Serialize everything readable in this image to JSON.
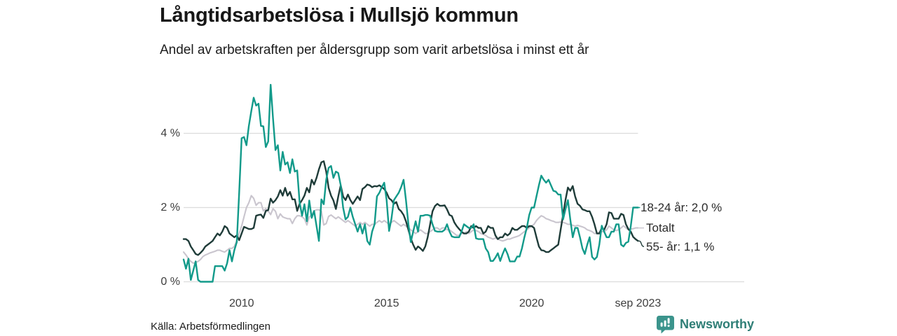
{
  "header": {
    "title": "Långtidsarbetslösa i Mullsjö kommun",
    "subtitle": "Andel av arbetskraften per åldersgrupp som varit arbetslösa i minst ett år"
  },
  "footer": {
    "source": "Källa: Arbetsförmedlingen",
    "brand": "Newsworthy"
  },
  "colors": {
    "accent_teal": "#129a8a",
    "dark_series": "#1f3c39",
    "gray_series": "#c9c5ce",
    "grid": "#dcdcdc",
    "text": "#1c1c1c",
    "brand_teal": "#2e7e76",
    "logo_teal": "#3b948c"
  },
  "chart_data": {
    "type": "line",
    "title": "Långtidsarbetslösa i Mullsjö kommun",
    "subtitle": "Andel av arbetskraften per åldersgrupp som varit arbetslösa i minst ett år",
    "unit": "%",
    "grid": "horizontal",
    "legend_position": "right-end-labels",
    "xlim": [
      2008.0,
      2023.6667
    ],
    "ylim": [
      0,
      5.5
    ],
    "x_step_years": 0.0833333,
    "x_ticks": [
      {
        "label": "2010",
        "year": 2010
      },
      {
        "label": "2015",
        "year": 2015
      },
      {
        "label": "2020",
        "year": 2020
      },
      {
        "label": "sep 2023",
        "year": 2023.6667
      }
    ],
    "y_ticks": [
      {
        "label": "0 %",
        "value": 0
      },
      {
        "label": "2 %",
        "value": 2
      },
      {
        "label": "4 %",
        "value": 4
      }
    ],
    "series": [
      {
        "name": "18-24 år",
        "end_label": "18-24 år: 2,0 %",
        "last_value": 2.0,
        "color": "#129a8a",
        "values": [
          0.6,
          0.35,
          0.62,
          0.05,
          0.3,
          0.55,
          0.05,
          0,
          0,
          0,
          0,
          0,
          0,
          0.42,
          0.42,
          0.42,
          0.42,
          0.3,
          0.5,
          0.85,
          0.55,
          0.85,
          1.07,
          2.4,
          3.87,
          3.9,
          3.68,
          4.2,
          4.6,
          4.96,
          4.75,
          4.8,
          4.2,
          4.19,
          3.63,
          3.78,
          5.31,
          4.4,
          3.55,
          3.68,
          3.0,
          3.5,
          3.16,
          3.22,
          2.93,
          3.3,
          2.97,
          3.0,
          2.15,
          1.78,
          2.09,
          1.63,
          2.19,
          1.72,
          1.91,
          1.5,
          1.1,
          2.22,
          2.09,
          2.75,
          3.07,
          3.12,
          2.8,
          2.97,
          2.93,
          2.6,
          2.0,
          1.68,
          1.75,
          2.0,
          1.75,
          1.55,
          1.35,
          1.55,
          1.3,
          1.55,
          1.1,
          1.0,
          1.35,
          1.55,
          2.3,
          2.4,
          2.55,
          2.67,
          2.2,
          1.37,
          1.7,
          2.2,
          2.3,
          2.4,
          2.55,
          2.75,
          2.2,
          1.55,
          1.07,
          1.35,
          1.63,
          1.35,
          1.78,
          1.78,
          1.8,
          1.8,
          1.78,
          1.55,
          1.37,
          1.35,
          1.35,
          1.35,
          1.4,
          1.55,
          1.35,
          1.22,
          1.2,
          1.2,
          1.2,
          1.35,
          1.55,
          1.5,
          1.45,
          1.45,
          1.55,
          1.17,
          1.15,
          1.15,
          1.15,
          0.9,
          0.8,
          0.56,
          0.56,
          0.65,
          0.77,
          0.56,
          0.75,
          0.9,
          0.75,
          0.55,
          0.55,
          0.55,
          0.68,
          0.68,
          0.9,
          1.2,
          1.45,
          1.8,
          2.0,
          2.0,
          2.3,
          2.6,
          2.86,
          2.75,
          2.67,
          2.75,
          2.6,
          2.45,
          2.43,
          2.35,
          2.35,
          1.68,
          1.95,
          2.2,
          1.68,
          1.2,
          1.45,
          1.45,
          1.2,
          0.9,
          0.75,
          1.0,
          1.2,
          0.67,
          0.6,
          0.67,
          1.0,
          1.51,
          1.35,
          1.2,
          1.2,
          1.35,
          1.35,
          1.55,
          1.55,
          1.0,
          0.95,
          1.05,
          1.08,
          1.5,
          2.0,
          2.0,
          2.0
        ]
      },
      {
        "name": "Totalt",
        "end_label": "Totalt",
        "last_value": 1.45,
        "color": "#c9c5ce",
        "values": [
          0.8,
          0.72,
          0.62,
          0.55,
          0.5,
          0.52,
          0.55,
          0.6,
          0.68,
          0.72,
          0.75,
          0.78,
          0.8,
          0.82,
          0.85,
          0.85,
          0.82,
          0.8,
          0.85,
          0.9,
          0.9,
          0.95,
          1.12,
          1.3,
          1.5,
          1.75,
          2.0,
          2.13,
          2.32,
          2.25,
          2.06,
          2.13,
          2.13,
          1.91,
          1.97,
          1.91,
          1.81,
          1.97,
          1.9,
          1.7,
          1.83,
          1.75,
          1.72,
          1.7,
          1.7,
          1.57,
          1.7,
          1.78,
          1.78,
          1.75,
          1.7,
          1.53,
          1.75,
          1.8,
          1.91,
          1.94,
          1.94,
          1.9,
          1.53,
          1.57,
          1.76,
          1.8,
          1.75,
          1.7,
          1.75,
          1.7,
          1.65,
          1.6,
          1.65,
          1.6,
          1.55,
          1.5,
          1.55,
          1.6,
          1.55,
          1.6,
          1.55,
          1.5,
          1.55,
          1.55,
          1.6,
          1.65,
          1.6,
          1.65,
          1.6,
          1.55,
          1.6,
          1.65,
          1.6,
          1.55,
          1.5,
          1.55,
          1.5,
          1.45,
          1.4,
          1.35,
          1.3,
          1.35,
          1.4,
          1.35,
          1.3,
          1.3,
          1.35,
          1.4,
          1.45,
          1.45,
          1.4,
          1.45,
          1.45,
          1.4,
          1.4,
          1.35,
          1.3,
          1.25,
          1.25,
          1.3,
          1.3,
          1.35,
          1.3,
          1.35,
          1.4,
          1.38,
          1.35,
          1.3,
          1.28,
          1.25,
          1.2,
          1.18,
          1.15,
          1.18,
          1.15,
          1.12,
          1.1,
          1.12,
          1.15,
          1.15,
          1.18,
          1.2,
          1.22,
          1.25,
          1.3,
          1.35,
          1.4,
          1.45,
          1.5,
          1.55,
          1.65,
          1.72,
          1.78,
          1.75,
          1.7,
          1.68,
          1.65,
          1.63,
          1.6,
          1.6,
          1.61,
          1.6,
          1.58,
          1.55,
          1.55,
          1.52,
          1.5,
          1.52,
          1.5,
          1.48,
          1.45,
          1.4,
          1.38,
          1.35,
          1.3,
          1.3,
          1.33,
          1.35,
          1.35,
          1.4,
          1.5,
          1.45,
          1.4,
          1.38,
          1.4,
          1.45,
          1.51,
          1.45,
          1.4,
          1.42,
          1.43,
          1.45,
          1.45
        ]
      },
      {
        "name": "55- år",
        "end_label": "55- år: 1,1 %",
        "last_value": 1.1,
        "color": "#1f3c39",
        "values": [
          1.15,
          1.15,
          1.1,
          0.95,
          0.85,
          0.75,
          0.72,
          0.78,
          0.85,
          0.95,
          1.0,
          1.05,
          1.1,
          1.2,
          1.3,
          1.25,
          1.35,
          1.5,
          1.45,
          1.3,
          1.25,
          1.2,
          1.25,
          1.12,
          1.3,
          1.48,
          1.45,
          1.42,
          1.42,
          1.45,
          1.78,
          1.8,
          1.81,
          1.72,
          1.91,
          1.93,
          2.24,
          2.13,
          2.2,
          2.3,
          2.47,
          2.32,
          2.53,
          2.32,
          2.42,
          2.22,
          2.22,
          1.91,
          2.1,
          2.2,
          2.32,
          2.53,
          2.41,
          2.75,
          2.62,
          2.8,
          3.03,
          3.22,
          3.25,
          2.97,
          2.53,
          2.32,
          2.19,
          1.96,
          2.3,
          2.6,
          2.3,
          2.2,
          2.35,
          2.2,
          2.1,
          2.2,
          2.3,
          2.2,
          2.5,
          2.55,
          2.62,
          2.6,
          2.55,
          2.58,
          2.57,
          2.6,
          2.55,
          2.5,
          2.4,
          2.25,
          2.2,
          2.1,
          2.15,
          1.96,
          1.9,
          1.8,
          1.63,
          1.4,
          1.17,
          1.0,
          0.86,
          0.95,
          0.9,
          0.83,
          0.95,
          1.2,
          1.55,
          1.9,
          2.04,
          2.1,
          2.05,
          2.05,
          2.06,
          1.95,
          1.8,
          1.77,
          1.6,
          1.5,
          1.42,
          1.35,
          1.3,
          1.3,
          1.35,
          1.5,
          1.45,
          1.5,
          1.45,
          1.45,
          1.3,
          1.35,
          1.5,
          1.45,
          1.45,
          1.25,
          1.15,
          1.2,
          1.2,
          1.3,
          1.25,
          1.3,
          1.45,
          1.4,
          1.4,
          1.45,
          1.5,
          1.5,
          1.45,
          1.5,
          1.5,
          1.45,
          1.2,
          0.95,
          0.85,
          0.84,
          0.8,
          0.8,
          0.85,
          0.9,
          0.95,
          1.0,
          1.4,
          1.8,
          2.2,
          2.54,
          2.45,
          2.58,
          2.3,
          2.1,
          2.05,
          1.95,
          1.93,
          1.9,
          1.9,
          1.75,
          1.55,
          1.3,
          1.3,
          1.45,
          1.4,
          1.55,
          1.87,
          1.85,
          1.7,
          1.7,
          1.7,
          1.83,
          1.8,
          1.55,
          1.42,
          1.35,
          1.21,
          1.15,
          1.1
        ]
      }
    ]
  }
}
